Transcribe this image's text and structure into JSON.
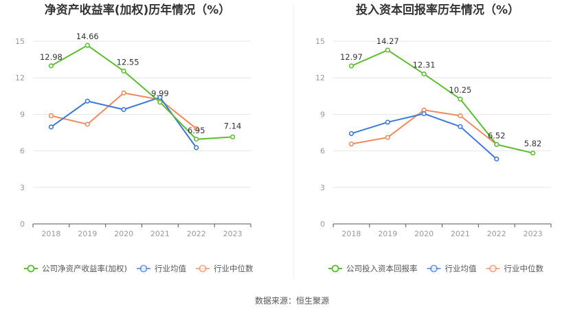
{
  "source": "数据来源：恒生聚源",
  "colors": {
    "company": "#5cbd2e",
    "average": "#3b78d8",
    "median": "#ef8a5f"
  },
  "chart_data": [
    {
      "type": "line",
      "title": "净资产收益率(加权)历年情况（%）",
      "categories": [
        "2018",
        "2019",
        "2020",
        "2021",
        "2022",
        "2023"
      ],
      "ylim": [
        0,
        15
      ],
      "yticks": [
        0,
        3,
        6,
        9,
        12,
        15
      ],
      "grid": true,
      "legend_position": "bottom",
      "series": [
        {
          "key": "company",
          "name": "公司净资产收益率(加权)",
          "values": [
            12.98,
            14.66,
            12.55,
            9.99,
            6.95,
            7.14
          ],
          "labels": [
            "12.98",
            "14.66",
            "12.55",
            "9.99",
            "6.95",
            "7.14"
          ]
        },
        {
          "key": "average",
          "name": "行业均值",
          "values": [
            7.96,
            10.08,
            9.39,
            10.39,
            6.26,
            null
          ]
        },
        {
          "key": "median",
          "name": "行业中位数",
          "values": [
            8.88,
            8.18,
            10.75,
            10.2,
            7.82,
            null
          ]
        }
      ]
    },
    {
      "type": "line",
      "title": "投入资本回报率历年情况（%）",
      "categories": [
        "2018",
        "2019",
        "2020",
        "2021",
        "2022",
        "2023"
      ],
      "ylim": [
        0,
        15
      ],
      "yticks": [
        0,
        3,
        6,
        9,
        12,
        15
      ],
      "grid": true,
      "legend_position": "bottom",
      "series": [
        {
          "key": "company",
          "name": "公司投入资本回报率",
          "values": [
            12.97,
            14.27,
            12.31,
            10.25,
            6.52,
            5.82
          ],
          "labels": [
            "12.97",
            "14.27",
            "12.31",
            "10.25",
            "6.52",
            "5.82"
          ]
        },
        {
          "key": "average",
          "name": "行业均值",
          "values": [
            7.42,
            8.35,
            9.05,
            7.99,
            5.33,
            null
          ]
        },
        {
          "key": "median",
          "name": "行业中位数",
          "values": [
            6.56,
            7.1,
            9.35,
            8.88,
            6.52,
            null
          ]
        }
      ]
    }
  ]
}
